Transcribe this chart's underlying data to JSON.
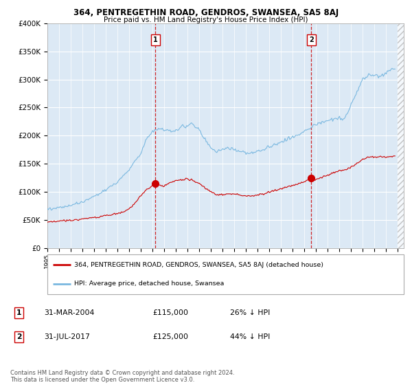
{
  "title": "364, PENTREGETHIN ROAD, GENDROS, SWANSEA, SA5 8AJ",
  "subtitle": "Price paid vs. HM Land Registry's House Price Index (HPI)",
  "ylim": [
    0,
    400000
  ],
  "yticks": [
    0,
    50000,
    100000,
    150000,
    200000,
    250000,
    300000,
    350000,
    400000
  ],
  "ytick_labels": [
    "£0",
    "£50K",
    "£100K",
    "£150K",
    "£200K",
    "£250K",
    "£300K",
    "£350K",
    "£400K"
  ],
  "background_color": "#dce9f5",
  "grid_color": "#ffffff",
  "sale1_year": 2004.25,
  "sale1_price": 115000,
  "sale1_label": "31-MAR-2004",
  "sale1_pct": "26% ↓ HPI",
  "sale2_year": 2017.583,
  "sale2_price": 125000,
  "sale2_label": "31-JUL-2017",
  "sale2_pct": "44% ↓ HPI",
  "red_line_color": "#cc0000",
  "blue_line_color": "#7ab8e0",
  "legend1_label": "364, PENTREGETHIN ROAD, GENDROS, SWANSEA, SA5 8AJ (detached house)",
  "legend2_label": "HPI: Average price, detached house, Swansea",
  "footnote": "Contains HM Land Registry data © Crown copyright and database right 2024.\nThis data is licensed under the Open Government Licence v3.0.",
  "xlim_left": 1995.0,
  "xlim_right": 2025.5
}
